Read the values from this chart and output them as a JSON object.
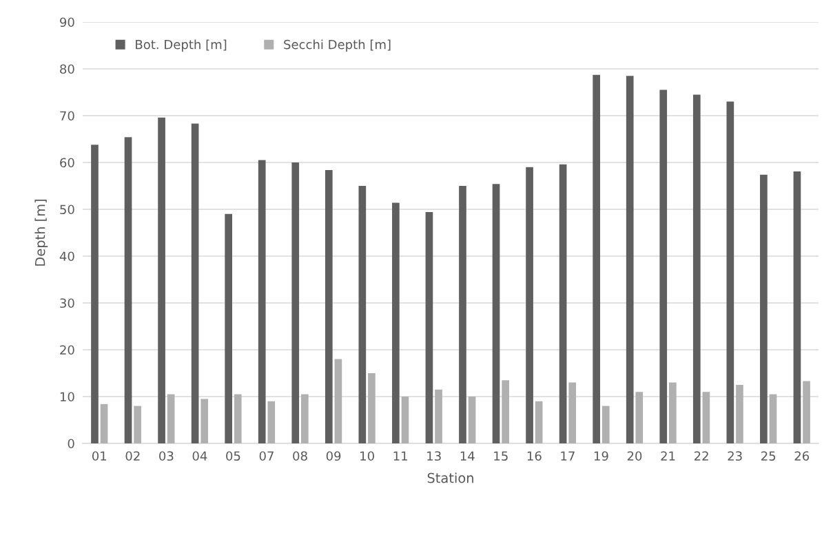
{
  "chart_data": {
    "type": "bar",
    "xlabel": "Station",
    "ylabel": "Depth [m]",
    "categories": [
      "01",
      "02",
      "03",
      "04",
      "05",
      "07",
      "08",
      "09",
      "10",
      "11",
      "13",
      "14",
      "15",
      "16",
      "17",
      "19",
      "20",
      "21",
      "22",
      "23",
      "25",
      "26"
    ],
    "series": [
      {
        "name": "Bot. Depth [m]",
        "color": "#5f5f5f",
        "values": [
          63.8,
          65.4,
          69.6,
          68.3,
          49,
          60.5,
          60,
          58.4,
          55,
          51.4,
          49.4,
          55,
          55.4,
          59,
          59.6,
          78.7,
          78.5,
          75.5,
          74.5,
          73,
          57.4,
          58.1
        ]
      },
      {
        "name": "Secchi Depth [m]",
        "color": "#b0b0b0",
        "values": [
          8.4,
          8,
          10.5,
          9.5,
          10.5,
          9,
          10.5,
          18,
          15,
          10,
          11.5,
          10,
          13.5,
          9,
          13,
          8,
          11,
          13,
          11,
          12.5,
          10.5,
          13.3
        ]
      }
    ],
    "ylim": [
      0,
      90
    ],
    "yticks": [
      0,
      10,
      20,
      30,
      40,
      50,
      60,
      70,
      80,
      90
    ],
    "grid": "y",
    "legend": "top left"
  }
}
